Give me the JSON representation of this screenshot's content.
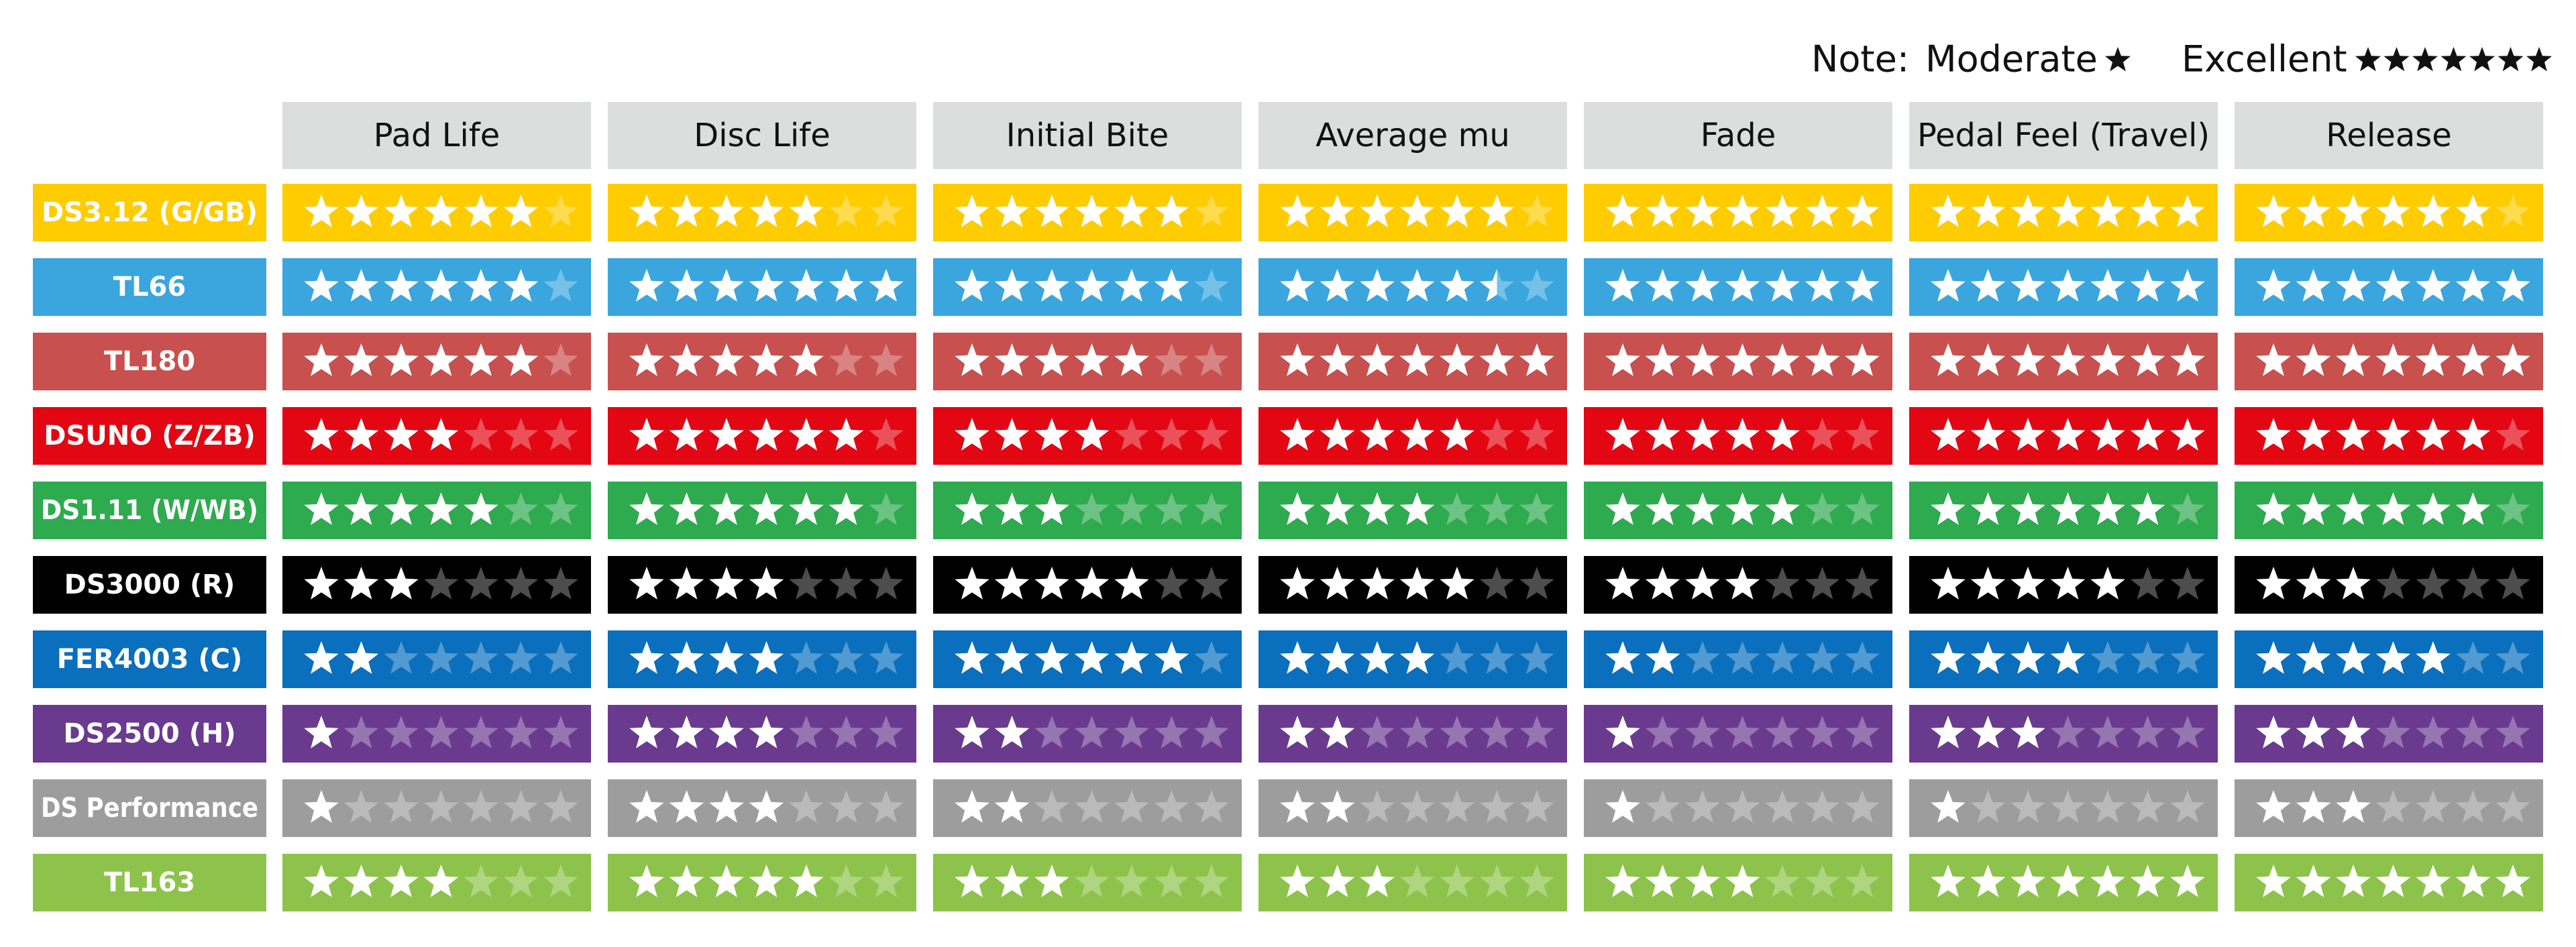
{
  "note": {
    "label": "Note:",
    "low": "Moderate",
    "high": "Excellent"
  },
  "table": {
    "columns": [
      "Pad Life",
      "Disc Life",
      "Initial Bite",
      "Average mu",
      "Fade",
      "Pedal Feel (Travel)",
      "Release"
    ],
    "rows": [
      {
        "name": "DS3.12 (G/GB)",
        "color": "#ffcc00",
        "ratings": [
          6,
          5,
          6,
          6,
          7,
          7,
          6
        ]
      },
      {
        "name": "TL66",
        "color": "#3aa6dd",
        "ratings": [
          6,
          7,
          6,
          5.5,
          7,
          7,
          7
        ]
      },
      {
        "name": "TL180",
        "color": "#c8504f",
        "ratings": [
          6,
          5,
          5,
          7,
          7,
          7,
          7
        ]
      },
      {
        "name": "DSUNO (Z/ZB)",
        "color": "#e30613",
        "ratings": [
          4,
          6,
          4,
          5,
          5,
          7,
          6
        ]
      },
      {
        "name": "DS1.11 (W/WB)",
        "color": "#2eaa4f",
        "ratings": [
          5,
          6,
          3,
          4,
          5,
          6,
          6
        ]
      },
      {
        "name": "DS3000 (R)",
        "color": "#000000",
        "ratings": [
          3,
          4,
          5,
          5,
          4,
          5,
          3
        ]
      },
      {
        "name": "FER4003 (C)",
        "color": "#0a6fbd",
        "ratings": [
          2,
          4,
          6,
          4,
          2,
          4,
          5
        ]
      },
      {
        "name": "DS2500 (H)",
        "color": "#6a3a8f",
        "ratings": [
          1,
          4,
          2,
          2,
          1,
          3,
          3
        ]
      },
      {
        "name": "DS Performance",
        "color": "#9d9d9d",
        "ratings": [
          1,
          4,
          2,
          2,
          1,
          1,
          3
        ]
      },
      {
        "name": "TL163",
        "color": "#8dc34a",
        "ratings": [
          4,
          5,
          3,
          3,
          4,
          7,
          7
        ]
      }
    ]
  }
}
